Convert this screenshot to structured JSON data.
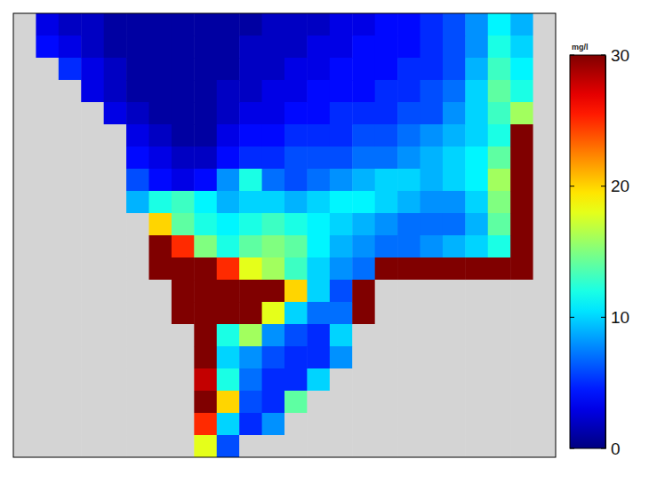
{
  "chart_data": {
    "type": "heatmap",
    "tick_labels": false,
    "color_label": "mg/l",
    "color_range": [
      0,
      30
    ],
    "color_ticks": [
      0,
      10,
      20,
      30
    ],
    "cells": [
      [
        null,
        3,
        2,
        2,
        1,
        1,
        1,
        1,
        1,
        1,
        1,
        2,
        2,
        2,
        3,
        3,
        4,
        4,
        5,
        6,
        8,
        11,
        9,
        null
      ],
      [
        null,
        4,
        3,
        2,
        1,
        1,
        1,
        1,
        1,
        1,
        2,
        2,
        2,
        3,
        3,
        4,
        4,
        4,
        5,
        6,
        8,
        12,
        10,
        null
      ],
      [
        null,
        null,
        5,
        3,
        2,
        1,
        1,
        1,
        1,
        1,
        2,
        2,
        3,
        3,
        4,
        4,
        4,
        5,
        5,
        6,
        9,
        13,
        11,
        null
      ],
      [
        null,
        null,
        null,
        3,
        2,
        1,
        1,
        1,
        1,
        2,
        2,
        3,
        3,
        4,
        4,
        4,
        5,
        5,
        6,
        7,
        10,
        14,
        12,
        null
      ],
      [
        null,
        null,
        null,
        null,
        3,
        2,
        1,
        1,
        1,
        2,
        3,
        3,
        4,
        4,
        5,
        5,
        5,
        6,
        6,
        8,
        10,
        13,
        16,
        null
      ],
      [
        null,
        null,
        null,
        null,
        null,
        3,
        2,
        1,
        1,
        3,
        4,
        4,
        5,
        5,
        5,
        6,
        6,
        7,
        8,
        9,
        10,
        12,
        30,
        null
      ],
      [
        null,
        null,
        null,
        null,
        null,
        4,
        3,
        2,
        2,
        4,
        5,
        5,
        6,
        6,
        6,
        7,
        7,
        8,
        9,
        10,
        11,
        14,
        30,
        null
      ],
      [
        null,
        null,
        null,
        null,
        null,
        6,
        4,
        3,
        4,
        8,
        12,
        7,
        6,
        7,
        8,
        9,
        10,
        10,
        9,
        10,
        11,
        16,
        30,
        null
      ],
      [
        null,
        null,
        null,
        null,
        null,
        9,
        12,
        13,
        11,
        9,
        10,
        10,
        9,
        10,
        11,
        11,
        10,
        9,
        8,
        8,
        10,
        15,
        30,
        null
      ],
      [
        null,
        null,
        null,
        null,
        null,
        null,
        20,
        14,
        12,
        11,
        12,
        13,
        12,
        11,
        10,
        9,
        8,
        7,
        7,
        7,
        9,
        14,
        30,
        null
      ],
      [
        null,
        null,
        null,
        null,
        null,
        null,
        30,
        25,
        15,
        12,
        14,
        15,
        14,
        11,
        9,
        8,
        7,
        7,
        8,
        9,
        10,
        12,
        30,
        null
      ],
      [
        null,
        null,
        null,
        null,
        null,
        null,
        30,
        30,
        30,
        25,
        18,
        16,
        13,
        10,
        8,
        7,
        30,
        30,
        30,
        30,
        30,
        30,
        30,
        null
      ],
      [
        null,
        null,
        null,
        null,
        null,
        null,
        null,
        30,
        30,
        30,
        30,
        30,
        20,
        10,
        6,
        30,
        null,
        null,
        null,
        null,
        null,
        null,
        null,
        null
      ],
      [
        null,
        null,
        null,
        null,
        null,
        null,
        null,
        30,
        30,
        30,
        30,
        18,
        10,
        7,
        7,
        30,
        null,
        null,
        null,
        null,
        null,
        null,
        null,
        null
      ],
      [
        null,
        null,
        null,
        null,
        null,
        null,
        null,
        null,
        30,
        12,
        16,
        8,
        6,
        5,
        10,
        null,
        null,
        null,
        null,
        null,
        null,
        null,
        null,
        null
      ],
      [
        null,
        null,
        null,
        null,
        null,
        null,
        null,
        null,
        30,
        10,
        8,
        6,
        5,
        5,
        8,
        null,
        null,
        null,
        null,
        null,
        null,
        null,
        null,
        null
      ],
      [
        null,
        null,
        null,
        null,
        null,
        null,
        null,
        null,
        28,
        12,
        7,
        5,
        5,
        10,
        null,
        null,
        null,
        null,
        null,
        null,
        null,
        null,
        null,
        null
      ],
      [
        null,
        null,
        null,
        null,
        null,
        null,
        null,
        null,
        30,
        20,
        6,
        5,
        14,
        null,
        null,
        null,
        null,
        null,
        null,
        null,
        null,
        null,
        null,
        null
      ],
      [
        null,
        null,
        null,
        null,
        null,
        null,
        null,
        null,
        25,
        10,
        5,
        8,
        null,
        null,
        null,
        null,
        null,
        null,
        null,
        null,
        null,
        null,
        null,
        null
      ],
      [
        null,
        null,
        null,
        null,
        null,
        null,
        null,
        null,
        18,
        6,
        null,
        null,
        null,
        null,
        null,
        null,
        null,
        null,
        null,
        null,
        null,
        null,
        null,
        null
      ]
    ]
  }
}
